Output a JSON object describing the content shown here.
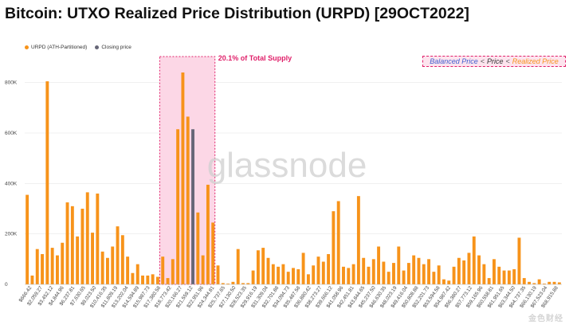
{
  "title": "Bitcoin: UTXO Realized Price Distribution (URPD) [29OCT2022]",
  "legend": [
    {
      "label": "URPD (ATH-Partitioned)",
      "color": "#f7931a"
    },
    {
      "label": "Closing price",
      "color": "#666677"
    }
  ],
  "highlight_label": "20.1% of Total Supply",
  "balance_note": {
    "balanced": "Balanced Price",
    "lt1": "<",
    "price": "Price",
    "lt2": "<",
    "realized": "Realized Price"
  },
  "watermark": "glassnode",
  "footer_mark": "金色财经",
  "colors": {
    "bar": "#f7931a",
    "closing": "#666677",
    "highlight_fill": "#fcd7e6",
    "highlight_border": "#e0206a",
    "grid": "#e6e6e6"
  },
  "chart_data": {
    "type": "bar",
    "title": "Bitcoin: UTXO Realized Price Distribution (URPD) [29OCT2022]",
    "xlabel": "",
    "ylabel": "",
    "ylim": [
      0,
      900000
    ],
    "yticks": [
      {
        "value": 0,
        "label": "0"
      },
      {
        "value": 200000,
        "label": "200K"
      },
      {
        "value": 400000,
        "label": "400K"
      },
      {
        "value": 600000,
        "label": "600K"
      },
      {
        "value": 800000,
        "label": "800K"
      }
    ],
    "values": [
      355000,
      35000,
      140000,
      120000,
      805000,
      145000,
      115000,
      165000,
      325000,
      310000,
      190000,
      300000,
      365000,
      205000,
      360000,
      130000,
      105000,
      150000,
      230000,
      195000,
      110000,
      45000,
      80000,
      35000,
      35000,
      40000,
      30000,
      110000,
      25000,
      100000,
      615000,
      840000,
      665000,
      615000,
      285000,
      115000,
      395000,
      245000,
      75000,
      5000,
      3000,
      10000,
      140000,
      5000,
      5000,
      55000,
      135000,
      145000,
      105000,
      80000,
      70000,
      80000,
      50000,
      65000,
      60000,
      125000,
      40000,
      75000,
      110000,
      90000,
      120000,
      290000,
      330000,
      70000,
      65000,
      80000,
      350000,
      105000,
      70000,
      100000,
      150000,
      90000,
      50000,
      85000,
      150000,
      55000,
      85000,
      115000,
      105000,
      80000,
      100000,
      50000,
      75000,
      20000,
      15000,
      70000,
      105000,
      95000,
      125000,
      190000,
      115000,
      80000,
      25000,
      100000,
      70000,
      55000,
      55000,
      60000,
      185000,
      25000,
      10000,
      5000,
      20000,
      3000,
      10000,
      10000,
      8000
    ],
    "closing_price_index": 33,
    "highlight_range": [
      27,
      37
    ],
    "tick_labels": [
      "$666.42",
      "$2,059.27",
      "$3,452.12",
      "$4,844.96",
      "$6,237.81",
      "$7,630.65",
      "$9,023.50",
      "$10,416.35",
      "$11,809.19",
      "$13,202.04",
      "$14,594.89",
      "$15,987.73",
      "$17,380.58",
      "$18,773.42",
      "$20,166.27",
      "$21,559.12",
      "$22,951.96",
      "$24,344.81",
      "$25,737.65",
      "$27,130.50",
      "$28,523.35",
      "$29,916.19",
      "$31,309.04",
      "$32,701.88",
      "$34,094.73",
      "$35,487.58",
      "$36,880.42",
      "$38,273.27",
      "$39,666.12",
      "$41,058.96",
      "$42,451.81",
      "$43,844.65",
      "$45,237.50",
      "$46,630.35",
      "$48,023.19",
      "$49,416.04",
      "$50,808.88",
      "$52,201.73",
      "$53,594.58",
      "$54,987.42",
      "$56,380.27",
      "$57,773.12",
      "$59,165.96",
      "$60,558.81",
      "$61,951.65",
      "$63,344.50",
      "$64,737.35",
      "$66,130.19",
      "$67,523.04",
      "$68,915.88"
    ]
  }
}
